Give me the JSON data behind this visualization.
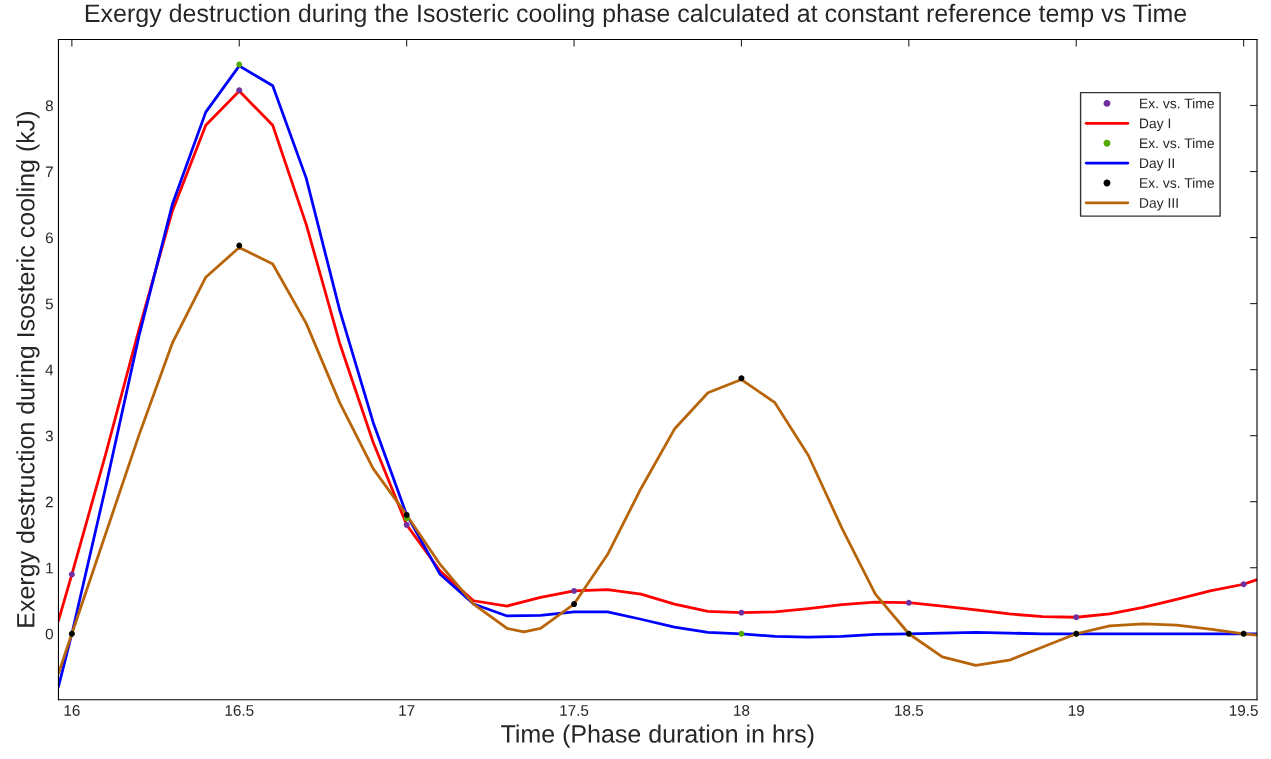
{
  "chart_data": {
    "type": "line",
    "title": "Exergy destruction during the Isosteric cooling phase calculated at constant reference temp vs Time",
    "xlabel": "Time (Phase duration in hrs)",
    "ylabel": "Exergy destruction during Isosteric cooling (kJ)",
    "xlim": [
      15.96,
      19.54
    ],
    "ylim": [
      -1,
      9
    ],
    "xticks": [
      16,
      16.5,
      17,
      17.5,
      18,
      18.5,
      19,
      19.5
    ],
    "yticks": [
      0,
      1,
      2,
      3,
      4,
      5,
      6,
      7,
      8
    ],
    "grid": false,
    "legend": "top right",
    "series": [
      {
        "name": "Ex. vs. Time",
        "type": "scatter",
        "marker": "circle",
        "color": "#7030a0",
        "x": [
          16,
          16.5,
          17,
          17.5,
          18,
          18.5,
          19,
          19.5
        ],
        "values": [
          0.9,
          8.23,
          1.65,
          0.65,
          0.32,
          0.47,
          0.25,
          0.75
        ]
      },
      {
        "name": "Day I",
        "color": "#ff0000",
        "x": [
          15.96,
          16.0,
          16.1,
          16.2,
          16.3,
          16.4,
          16.5,
          16.6,
          16.7,
          16.8,
          16.9,
          17.0,
          17.1,
          17.2,
          17.3,
          17.4,
          17.5,
          17.6,
          17.7,
          17.8,
          17.9,
          18.0,
          18.1,
          18.2,
          18.3,
          18.4,
          18.5,
          18.6,
          18.7,
          18.8,
          18.9,
          19.0,
          19.1,
          19.2,
          19.3,
          19.4,
          19.5,
          19.54
        ],
        "values": [
          0.2,
          0.9,
          2.7,
          4.6,
          6.4,
          7.7,
          8.22,
          7.7,
          6.2,
          4.4,
          2.9,
          1.65,
          0.95,
          0.5,
          0.42,
          0.55,
          0.65,
          0.67,
          0.6,
          0.45,
          0.34,
          0.32,
          0.33,
          0.38,
          0.44,
          0.48,
          0.47,
          0.42,
          0.36,
          0.3,
          0.26,
          0.25,
          0.3,
          0.4,
          0.52,
          0.65,
          0.75,
          0.82
        ]
      },
      {
        "name": "Ex. vs. Time",
        "type": "scatter",
        "marker": "circle",
        "color": "#55aa00",
        "x": [
          16,
          16.5,
          17,
          17.5,
          18,
          18.5,
          19,
          19.5
        ],
        "values": [
          0,
          8.62,
          1.75,
          null,
          0,
          0,
          0,
          0
        ]
      },
      {
        "name": "Day II",
        "color": "#0000ff",
        "x": [
          15.96,
          16.0,
          16.1,
          16.2,
          16.3,
          16.4,
          16.5,
          16.6,
          16.7,
          16.8,
          16.9,
          17.0,
          17.1,
          17.2,
          17.3,
          17.4,
          17.5,
          17.6,
          17.7,
          17.8,
          17.9,
          18.0,
          18.1,
          18.2,
          18.3,
          18.4,
          18.5,
          18.6,
          18.7,
          18.8,
          18.9,
          19.0,
          19.2,
          19.4,
          19.54
        ],
        "values": [
          -0.8,
          0.0,
          2.2,
          4.5,
          6.5,
          7.9,
          8.6,
          8.3,
          6.9,
          4.9,
          3.2,
          1.8,
          0.9,
          0.45,
          0.27,
          0.28,
          0.33,
          0.33,
          0.22,
          0.1,
          0.02,
          0.0,
          -0.04,
          -0.05,
          -0.04,
          -0.01,
          0.0,
          0.01,
          0.02,
          0.01,
          0.0,
          0.0,
          0.0,
          0.0,
          0.0
        ]
      },
      {
        "name": "Ex. vs. Time",
        "type": "scatter",
        "marker": "circle",
        "color": "#000000",
        "x": [
          16,
          16.5,
          17,
          17.5,
          18,
          18.5,
          19,
          19.5
        ],
        "values": [
          0,
          5.88,
          1.8,
          0.45,
          3.87,
          0,
          0,
          0
        ]
      },
      {
        "name": "Day III",
        "color": "#b8650a",
        "x": [
          15.96,
          16.0,
          16.1,
          16.2,
          16.3,
          16.4,
          16.5,
          16.6,
          16.7,
          16.8,
          16.9,
          17.0,
          17.1,
          17.2,
          17.3,
          17.35,
          17.4,
          17.5,
          17.6,
          17.7,
          17.8,
          17.9,
          18.0,
          18.1,
          18.2,
          18.3,
          18.4,
          18.5,
          18.6,
          18.7,
          18.8,
          18.9,
          19.0,
          19.1,
          19.2,
          19.3,
          19.4,
          19.5,
          19.54
        ],
        "values": [
          -0.6,
          0.0,
          1.5,
          3.0,
          4.4,
          5.4,
          5.85,
          5.6,
          4.7,
          3.5,
          2.5,
          1.8,
          1.05,
          0.45,
          0.08,
          0.03,
          0.08,
          0.45,
          1.2,
          2.2,
          3.1,
          3.65,
          3.85,
          3.5,
          2.7,
          1.6,
          0.6,
          0.0,
          -0.35,
          -0.48,
          -0.4,
          -0.2,
          0.0,
          0.12,
          0.15,
          0.13,
          0.07,
          0.0,
          -0.02
        ]
      }
    ]
  }
}
